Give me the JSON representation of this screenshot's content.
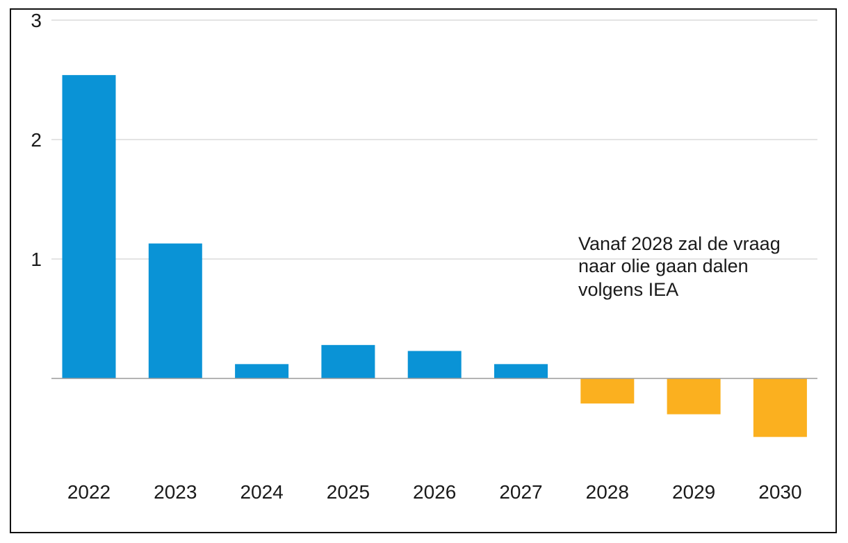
{
  "chart_data": {
    "type": "bar",
    "title": "",
    "xlabel": "",
    "ylabel": "",
    "categories": [
      "2022",
      "2023",
      "2024",
      "2025",
      "2026",
      "2027",
      "2028",
      "2029",
      "2030"
    ],
    "values": [
      2.54,
      1.13,
      0.12,
      0.28,
      0.23,
      0.12,
      -0.21,
      -0.3,
      -0.49
    ],
    "ylim": [
      -0.6,
      3
    ],
    "yticks": [
      {
        "value": 1,
        "label": "1"
      },
      {
        "value": 2,
        "label": "2"
      },
      {
        "value": 3,
        "label": "3"
      }
    ],
    "grid": true,
    "annotation": {
      "lines": [
        "Vanaf 2028 zal de vraag",
        "naar olie gaan dalen",
        "volgens IEA"
      ]
    }
  },
  "colors": {
    "positive": "#0A93D6",
    "negative": "#FBB01F",
    "grid": "#c8c8c8",
    "baseline": "#9a9a9a"
  }
}
